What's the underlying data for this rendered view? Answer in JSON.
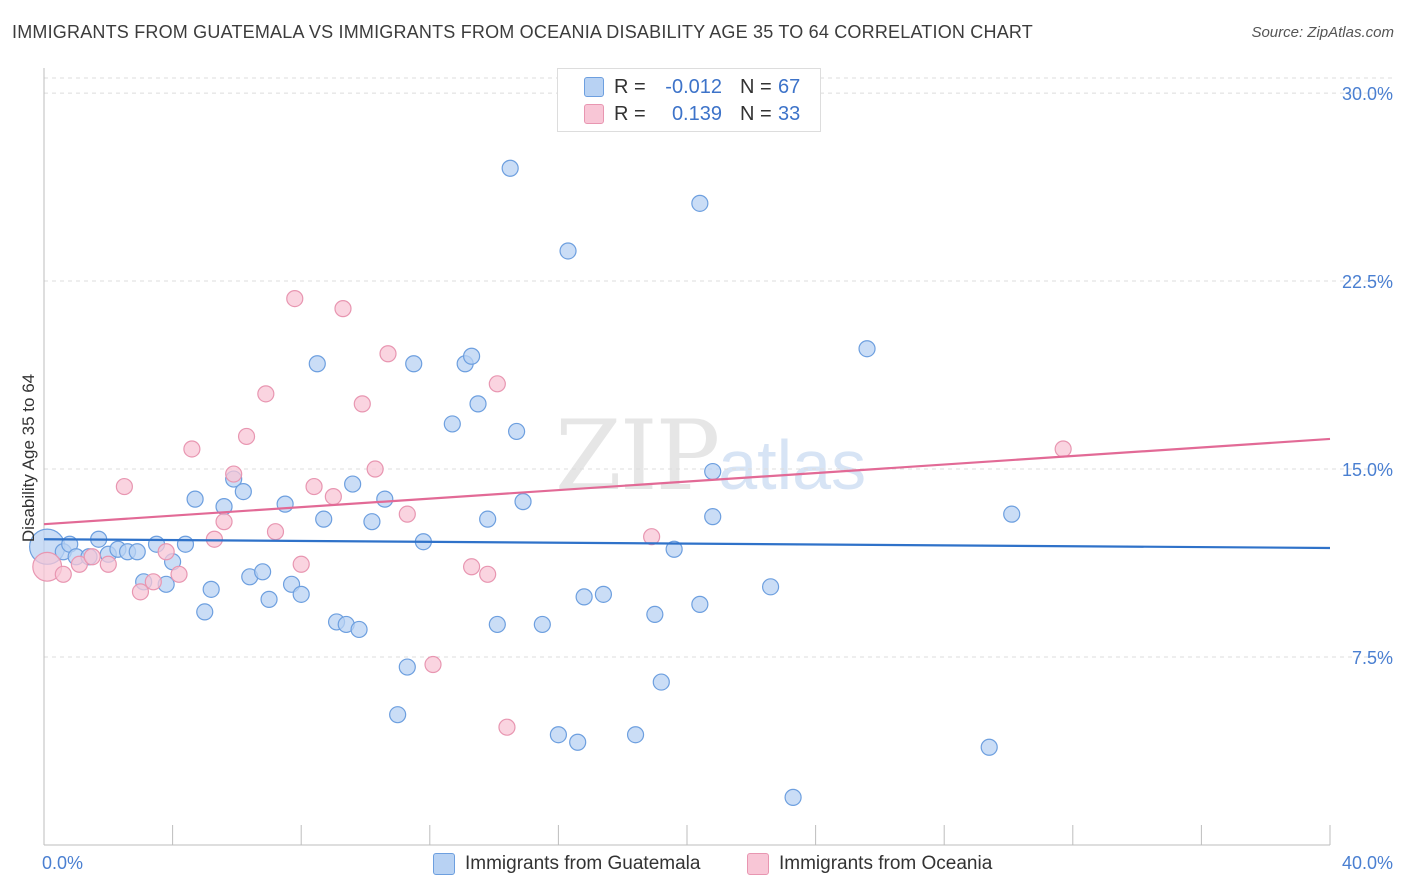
{
  "title": "IMMIGRANTS FROM GUATEMALA VS IMMIGRANTS FROM OCEANIA DISABILITY AGE 35 TO 64 CORRELATION CHART",
  "source": "Source: ZipAtlas.com",
  "watermark": {
    "zip": "ZIP",
    "atlas": "atlas"
  },
  "legend": {
    "rows": [
      {
        "r_label": "R =",
        "r_value": "-0.012",
        "n_label": "N =",
        "n_value": "67"
      },
      {
        "r_label": "R =",
        "r_value": "0.139",
        "n_label": "N =",
        "n_value": "33"
      }
    ]
  },
  "bottom_legend": [
    {
      "label": "Immigrants from Guatemala"
    },
    {
      "label": "Immigrants from Oceania"
    }
  ],
  "colors": {
    "blue_fill": "#b8d2f3",
    "blue_stroke": "#6d9fdf",
    "blue_line": "#2f72c9",
    "pink_fill": "#f8c6d6",
    "pink_stroke": "#e896b1",
    "pink_line": "#e26a96",
    "tick_text": "#4a7fd1",
    "grid": "#dcdcdc"
  },
  "chart_data": {
    "type": "scatter",
    "title": "IMMIGRANTS FROM GUATEMALA VS IMMIGRANTS FROM OCEANIA DISABILITY AGE 35 TO 64 CORRELATION CHART",
    "xlabel": "",
    "ylabel": "Disability Age 35 to 64",
    "xlim": [
      0,
      40
    ],
    "ylim": [
      0,
      31
    ],
    "x_tick_labels": [
      "0.0%",
      "40.0%"
    ],
    "y_ticks": [
      7.5,
      15.0,
      22.5,
      30.0
    ],
    "y_tick_labels": [
      "7.5%",
      "15.0%",
      "22.5%",
      "30.0%"
    ],
    "grid": "horizontal dashed",
    "series": [
      {
        "name": "Immigrants from Guatemala",
        "color": "blue",
        "trend": {
          "x": [
            0,
            40
          ],
          "y": [
            12.2,
            11.85
          ]
        },
        "points": [
          [
            0.1,
            11.9,
            2.2
          ],
          [
            0.6,
            11.7,
            1
          ],
          [
            0.8,
            12.0,
            1
          ],
          [
            1.0,
            11.5,
            1
          ],
          [
            1.4,
            11.5,
            1
          ],
          [
            1.7,
            12.2,
            1
          ],
          [
            2.0,
            11.6,
            1
          ],
          [
            2.3,
            11.8,
            1
          ],
          [
            2.6,
            11.7,
            1
          ],
          [
            2.9,
            11.7,
            1
          ],
          [
            3.1,
            10.5,
            1
          ],
          [
            3.5,
            12.0,
            1
          ],
          [
            3.8,
            10.4,
            1
          ],
          [
            4.0,
            11.3,
            1
          ],
          [
            4.4,
            12.0,
            1
          ],
          [
            4.7,
            13.8,
            1
          ],
          [
            5.0,
            9.3,
            1
          ],
          [
            5.2,
            10.2,
            1
          ],
          [
            5.6,
            13.5,
            1
          ],
          [
            5.9,
            14.6,
            1
          ],
          [
            6.2,
            14.1,
            1
          ],
          [
            6.4,
            10.7,
            1
          ],
          [
            6.8,
            10.9,
            1
          ],
          [
            7.0,
            9.8,
            1
          ],
          [
            7.5,
            13.6,
            1
          ],
          [
            7.7,
            10.4,
            1
          ],
          [
            8.0,
            10.0,
            1
          ],
          [
            8.5,
            19.2,
            1
          ],
          [
            8.7,
            13.0,
            1
          ],
          [
            9.1,
            8.9,
            1
          ],
          [
            9.4,
            8.8,
            1
          ],
          [
            9.6,
            14.4,
            1
          ],
          [
            9.8,
            8.6,
            1
          ],
          [
            10.2,
            12.9,
            1
          ],
          [
            10.6,
            13.8,
            1
          ],
          [
            11.0,
            5.2,
            1
          ],
          [
            11.3,
            7.1,
            1
          ],
          [
            11.5,
            19.2,
            1
          ],
          [
            11.8,
            12.1,
            1
          ],
          [
            12.7,
            16.8,
            1
          ],
          [
            13.1,
            19.2,
            1
          ],
          [
            13.3,
            19.5,
            1
          ],
          [
            13.5,
            17.6,
            1
          ],
          [
            13.8,
            13.0,
            1
          ],
          [
            14.1,
            8.8,
            1
          ],
          [
            14.5,
            27.0,
            1
          ],
          [
            14.7,
            16.5,
            1
          ],
          [
            14.9,
            13.7,
            1
          ],
          [
            15.5,
            8.8,
            1
          ],
          [
            16.0,
            4.4,
            1
          ],
          [
            16.3,
            23.7,
            1
          ],
          [
            16.6,
            4.1,
            1
          ],
          [
            16.8,
            9.9,
            1
          ],
          [
            17.4,
            10.0,
            1
          ],
          [
            18.4,
            4.4,
            1
          ],
          [
            19.0,
            9.2,
            1
          ],
          [
            19.2,
            6.5,
            1
          ],
          [
            19.6,
            11.8,
            1
          ],
          [
            20.4,
            9.6,
            1
          ],
          [
            20.4,
            25.6,
            1
          ],
          [
            20.8,
            14.9,
            1
          ],
          [
            20.8,
            13.1,
            1
          ],
          [
            22.6,
            10.3,
            1
          ],
          [
            23.3,
            1.9,
            1
          ],
          [
            25.6,
            19.8,
            1
          ],
          [
            29.4,
            3.9,
            1
          ],
          [
            30.1,
            13.2,
            1
          ]
        ]
      },
      {
        "name": "Immigrants from Oceania",
        "color": "pink",
        "trend": {
          "x": [
            0,
            40
          ],
          "y": [
            12.8,
            16.2
          ]
        },
        "points": [
          [
            0.1,
            11.1,
            1.8
          ],
          [
            0.6,
            10.8,
            1
          ],
          [
            1.1,
            11.2,
            1
          ],
          [
            1.5,
            11.5,
            1
          ],
          [
            2.0,
            11.2,
            1
          ],
          [
            2.5,
            14.3,
            1
          ],
          [
            3.0,
            10.1,
            1
          ],
          [
            3.4,
            10.5,
            1
          ],
          [
            3.8,
            11.7,
            1
          ],
          [
            4.2,
            10.8,
            1
          ],
          [
            4.6,
            15.8,
            1
          ],
          [
            5.3,
            12.2,
            1
          ],
          [
            5.6,
            12.9,
            1
          ],
          [
            5.9,
            14.8,
            1
          ],
          [
            6.3,
            16.3,
            1
          ],
          [
            6.9,
            18.0,
            1
          ],
          [
            7.2,
            12.5,
            1
          ],
          [
            7.8,
            21.8,
            1
          ],
          [
            8.0,
            11.2,
            1
          ],
          [
            8.4,
            14.3,
            1
          ],
          [
            9.0,
            13.9,
            1
          ],
          [
            9.3,
            21.4,
            1
          ],
          [
            9.9,
            17.6,
            1
          ],
          [
            10.3,
            15.0,
            1
          ],
          [
            10.7,
            19.6,
            1
          ],
          [
            11.3,
            13.2,
            1
          ],
          [
            12.1,
            7.2,
            1
          ],
          [
            13.3,
            11.1,
            1
          ],
          [
            13.8,
            10.8,
            1
          ],
          [
            14.1,
            18.4,
            1
          ],
          [
            14.4,
            4.7,
            1
          ],
          [
            18.9,
            12.3,
            1
          ],
          [
            31.7,
            15.8,
            1
          ]
        ]
      }
    ]
  }
}
